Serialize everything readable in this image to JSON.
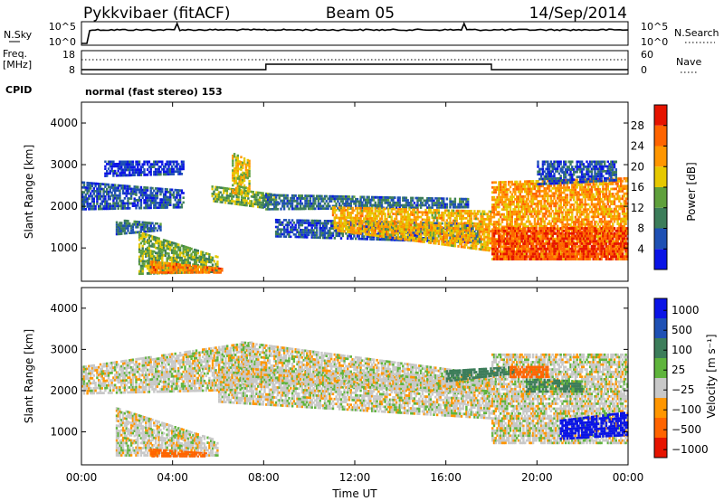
{
  "header": {
    "station": "Pykkvibaer (fitACF)",
    "beam": "Beam 05",
    "date": "14/Sep/2014"
  },
  "noise_panel": {
    "left_label": "N.Sky",
    "left_ticks": [
      "10^5",
      "10^0"
    ],
    "right_label": "N.Search",
    "right_ticks": [
      "10^5",
      "10^0"
    ]
  },
  "freq_panel": {
    "left_label_1": "Freq.",
    "left_label_2": "[MHz]",
    "left_ticks": [
      "18",
      "8"
    ],
    "right_label": "Nave",
    "right_ticks": [
      "60",
      "0"
    ]
  },
  "cpid": {
    "label": "CPID",
    "value": "normal (fast stereo) 153"
  },
  "x_axis": {
    "label": "Time UT",
    "ticks": [
      "00:00",
      "04:00",
      "08:00",
      "12:00",
      "16:00",
      "20:00",
      "00:00"
    ]
  },
  "colors": {
    "power_scale": [
      "#0a14e6",
      "#1e50b4",
      "#3c7d5a",
      "#5fa03c",
      "#e6c800",
      "#ff9600",
      "#ff6400",
      "#e61400"
    ],
    "velocity_scale": [
      "#0a14e6",
      "#1e50b4",
      "#3c7d5a",
      "#5fb43c",
      "#c8c8c8",
      "#ff9600",
      "#ff6400",
      "#e61400"
    ]
  },
  "chart_data": [
    {
      "type": "heatmap",
      "name": "power",
      "ylabel": "Slant Range [km]",
      "ylim": [
        200,
        4500
      ],
      "yticks": [
        "1000",
        "2000",
        "3000",
        "4000"
      ],
      "xlim_hours": [
        0,
        24
      ],
      "colorbar": {
        "label": "Power [dB]",
        "ticks": [
          "4",
          "8",
          "12",
          "16",
          "20",
          "24",
          "28"
        ],
        "range": [
          0,
          32
        ]
      },
      "bands": [
        {
          "t0": 0.0,
          "t1": 4.5,
          "r_low0": 1900,
          "r_high0": 2600,
          "r_low1": 1950,
          "r_high1": 2400,
          "p": 6
        },
        {
          "t0": 1.0,
          "t1": 4.5,
          "r_low0": 2700,
          "r_high0": 3100,
          "r_low1": 2750,
          "r_high1": 3100,
          "p": 4
        },
        {
          "t0": 1.5,
          "t1": 3.5,
          "r_low0": 1300,
          "r_high0": 1700,
          "r_low1": 1400,
          "r_high1": 1600,
          "p": 8
        },
        {
          "t0": 2.5,
          "t1": 6.0,
          "r_low0": 350,
          "r_high0": 1400,
          "r_low1": 400,
          "r_high1": 800,
          "p": 14
        },
        {
          "t0": 3.0,
          "t1": 6.2,
          "r_low0": 380,
          "r_high0": 700,
          "r_low1": 380,
          "r_high1": 520,
          "p": 24
        },
        {
          "t0": 5.7,
          "t1": 8.5,
          "r_low0": 2100,
          "r_high0": 2500,
          "r_low1": 1900,
          "r_high1": 2300,
          "p": 14
        },
        {
          "t0": 6.6,
          "t1": 7.4,
          "r_low0": 2300,
          "r_high0": 3300,
          "r_low1": 2200,
          "r_high1": 3100,
          "p": 18
        },
        {
          "t0": 8.0,
          "t1": 17.0,
          "r_low0": 1900,
          "r_high0": 2300,
          "r_low1": 1950,
          "r_high1": 2200,
          "p": 8
        },
        {
          "t0": 8.5,
          "t1": 17.5,
          "r_low0": 1250,
          "r_high0": 1700,
          "r_low1": 1100,
          "r_high1": 1600,
          "p": 6
        },
        {
          "t0": 11.0,
          "t1": 18.0,
          "r_low0": 1400,
          "r_high0": 2000,
          "r_low1": 900,
          "r_high1": 1900,
          "p": 20
        },
        {
          "t0": 18.0,
          "t1": 24.0,
          "r_low0": 700,
          "r_high0": 2600,
          "r_low1": 700,
          "r_high1": 2700,
          "p": 22
        },
        {
          "t0": 18.0,
          "t1": 24.0,
          "r_low0": 700,
          "r_high0": 1500,
          "r_low1": 700,
          "r_high1": 1500,
          "p": 28
        },
        {
          "t0": 20.0,
          "t1": 23.5,
          "r_low0": 2500,
          "r_high0": 3100,
          "r_low1": 2600,
          "r_high1": 3100,
          "p": 6
        }
      ]
    },
    {
      "type": "heatmap",
      "name": "velocity",
      "ylabel": "Slant Range [km]",
      "ylim": [
        200,
        4500
      ],
      "yticks": [
        "1000",
        "2000",
        "3000",
        "4000"
      ],
      "xlim_hours": [
        0,
        24
      ],
      "colorbar": {
        "label": "Velocity [m s⁻¹]",
        "ticks": [
          "1000",
          "500",
          "100",
          "25",
          "−25",
          "−100",
          "−500",
          "−1000"
        ]
      },
      "bands": [
        {
          "t0": 0.0,
          "t1": 7.5,
          "r_low0": 1900,
          "r_high0": 2600,
          "r_low1": 2000,
          "r_high1": 3200,
          "v": 0
        },
        {
          "t0": 1.5,
          "t1": 6.0,
          "r_low0": 400,
          "r_high0": 1600,
          "r_low1": 400,
          "r_high1": 800,
          "v": 0
        },
        {
          "t0": 3.0,
          "t1": 5.5,
          "r_low0": 380,
          "r_high0": 600,
          "r_low1": 380,
          "r_high1": 500,
          "v": -150
        },
        {
          "t0": 6.0,
          "t1": 18.0,
          "r_low0": 1700,
          "r_high0": 2600,
          "r_low1": 1300,
          "r_high1": 2300,
          "v": 0
        },
        {
          "t0": 7.0,
          "t1": 18.0,
          "r_low0": 2200,
          "r_high0": 3200,
          "r_low1": 1900,
          "r_high1": 2400,
          "v": 0
        },
        {
          "t0": 18.0,
          "t1": 24.0,
          "r_low0": 700,
          "r_high0": 2900,
          "r_low1": 700,
          "r_high1": 2900,
          "v": 0
        },
        {
          "t0": 16.0,
          "t1": 19.0,
          "r_low0": 2200,
          "r_high0": 2500,
          "r_low1": 2400,
          "r_high1": 2600,
          "v": 200
        },
        {
          "t0": 19.5,
          "t1": 22.0,
          "r_low0": 1950,
          "r_high0": 2300,
          "r_low1": 1950,
          "r_high1": 2250,
          "v": 120
        },
        {
          "t0": 18.8,
          "t1": 20.5,
          "r_low0": 2300,
          "r_high0": 2600,
          "r_low1": 2300,
          "r_high1": 2600,
          "v": -200
        },
        {
          "t0": 21.0,
          "t1": 24.0,
          "r_low0": 800,
          "r_high0": 1300,
          "r_low1": 900,
          "r_high1": 1500,
          "v": 600
        }
      ]
    }
  ]
}
